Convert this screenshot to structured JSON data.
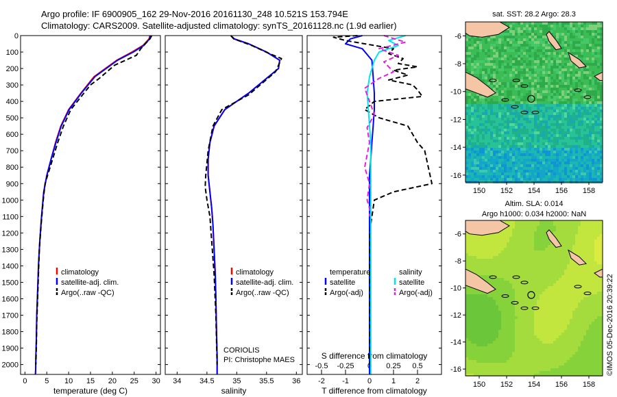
{
  "header": {
    "line1": "Argo profile: IF 6900905_162 29-Nov-2016 20161130_248 10.521S 153.794E",
    "line2": "Climatology: CARS2009. Satellite-adjusted climatology: synTS_20161128.nc (1.9d earlier)"
  },
  "colors": {
    "climatology": "#ff0000",
    "satellite": "#0000ff",
    "argo": "#000000",
    "sat_salinity": "#00e5ee",
    "argo_salinity": "#e020e0",
    "land": "#f5c6a5"
  },
  "chart_data": [
    {
      "type": "line",
      "xlabel": "temperature (deg C)",
      "xlim": [
        -1,
        31
      ],
      "ylim": [
        0,
        2060
      ],
      "xticks": [
        "0",
        "5",
        "10",
        "15",
        "20",
        "25",
        "30"
      ],
      "yticks": [
        "0",
        "100",
        "200",
        "300",
        "400",
        "500",
        "600",
        "700",
        "800",
        "900",
        "1000",
        "1100",
        "1200",
        "1300",
        "1400",
        "1500",
        "1600",
        "1700",
        "1800",
        "1900",
        "2000"
      ],
      "legend": [
        "climatology",
        "satellite-adj. clim.",
        "Argo(..raw -QC)"
      ],
      "series": [
        {
          "name": "climatology",
          "color": "#ff0000",
          "x": [
            28.6,
            28.4,
            27.0,
            24.5,
            21.0,
            15.8,
            12.8,
            10.0,
            8.2,
            7.0,
            6.0,
            5.0,
            4.3,
            3.8,
            3.4,
            3.1,
            2.9,
            2.7,
            2.6,
            2.5,
            2.45,
            2.4
          ],
          "y": [
            0,
            20,
            60,
            100,
            150,
            250,
            350,
            450,
            550,
            650,
            750,
            850,
            950,
            1100,
            1250,
            1400,
            1550,
            1700,
            1850,
            1950,
            2030,
            2060
          ]
        },
        {
          "name": "satellite-adj. clim.",
          "color": "#0000ff",
          "x": [
            28.8,
            28.5,
            27.2,
            24.8,
            21.2,
            16.0,
            12.9,
            10.1,
            8.3,
            7.1,
            6.0,
            5.0,
            4.3,
            3.8,
            3.4,
            3.1,
            2.9,
            2.7,
            2.6,
            2.5,
            2.45,
            2.4
          ],
          "y": [
            0,
            20,
            60,
            100,
            150,
            250,
            350,
            450,
            550,
            650,
            750,
            850,
            950,
            1100,
            1250,
            1400,
            1550,
            1700,
            1850,
            1950,
            2030,
            2060
          ]
        },
        {
          "name": "Argo(..raw -QC)",
          "color": "#000000",
          "dashed": true,
          "x": [
            29.0,
            28.6,
            26.5,
            25.5,
            20.5,
            17.0,
            15.0,
            10.5,
            8.8,
            7.5,
            6.0,
            4.6,
            4.2,
            3.7,
            3.3,
            3.1,
            2.9,
            2.7,
            2.6,
            2.5
          ],
          "y": [
            0,
            20,
            80,
            120,
            180,
            260,
            300,
            450,
            550,
            650,
            780,
            900,
            1000,
            1150,
            1300,
            1450,
            1600,
            1750,
            1900,
            2000
          ]
        }
      ]
    },
    {
      "type": "line",
      "xlabel": "salinity",
      "xlim": [
        33.8,
        36.1
      ],
      "ylim": [
        0,
        2060
      ],
      "xticks": [
        "34",
        "34.5",
        "35",
        "35.5",
        "36"
      ],
      "legend": [
        "climatology",
        "satellite-adj. clim.",
        "Argo(..raw -QC)"
      ],
      "footer_lines": [
        "CORIOLIS",
        "PI: Christophe MAES"
      ],
      "series": [
        {
          "name": "climatology",
          "color": "#ff0000",
          "x": [
            34.9,
            34.95,
            35.2,
            35.5,
            35.72,
            35.7,
            35.2,
            34.8,
            34.62,
            34.55,
            34.52,
            34.52,
            34.55,
            34.58,
            34.6,
            34.62,
            34.64,
            34.65,
            34.66,
            34.67,
            34.67
          ],
          "y": [
            0,
            20,
            50,
            100,
            150,
            200,
            350,
            450,
            550,
            650,
            750,
            850,
            950,
            1050,
            1150,
            1300,
            1450,
            1600,
            1800,
            1950,
            2060
          ]
        },
        {
          "name": "satellite-adj. clim.",
          "color": "#0000ff",
          "x": [
            34.9,
            34.96,
            35.2,
            35.5,
            35.72,
            35.7,
            35.2,
            34.8,
            34.62,
            34.55,
            34.52,
            34.52,
            34.55,
            34.58,
            34.6,
            34.62,
            34.64,
            34.65,
            34.66,
            34.67,
            34.67
          ],
          "y": [
            0,
            20,
            50,
            100,
            150,
            200,
            350,
            450,
            550,
            650,
            750,
            850,
            950,
            1050,
            1150,
            1300,
            1450,
            1600,
            1800,
            1950,
            2060
          ]
        },
        {
          "name": "Argo(..raw -QC)",
          "color": "#000000",
          "dashed": true,
          "x": [
            34.9,
            34.95,
            35.25,
            35.55,
            35.75,
            35.65,
            35.2,
            34.75,
            34.6,
            34.52,
            34.48,
            34.47,
            34.5,
            34.55,
            34.58,
            34.62,
            34.65,
            34.67
          ],
          "y": [
            0,
            20,
            60,
            110,
            140,
            220,
            360,
            450,
            550,
            700,
            850,
            920,
            1000,
            1100,
            1250,
            1450,
            1700,
            2000
          ]
        }
      ]
    },
    {
      "type": "line",
      "xlabel": "T difference from climatology",
      "xlabel_top": "S difference from climatology",
      "xlim": [
        -2.6,
        3.0
      ],
      "ylim": [
        0,
        2060
      ],
      "xticks": [
        "-2",
        "-1",
        "0",
        "1",
        "2"
      ],
      "xticks_top": [
        "-0.5",
        "-0.25",
        "0",
        "0.25",
        "0.5"
      ],
      "legend_temperature": [
        "temperature",
        "satellite",
        "Argo(-adj)"
      ],
      "legend_salinity": [
        "salinity",
        "satellite",
        "Argo(-adj)"
      ],
      "series": [
        {
          "name": "temperature satellite",
          "color": "#0000ff",
          "x": [
            -0.3,
            -0.8,
            -1.0,
            -0.3,
            0.1,
            0.15,
            0.2,
            0.2,
            0.15,
            0.1,
            0.05,
            0.0,
            0.0,
            0.0,
            0.0,
            0.0,
            0.0,
            0.0
          ],
          "y": [
            0,
            20,
            50,
            80,
            150,
            250,
            350,
            450,
            550,
            650,
            750,
            850,
            950,
            1100,
            1300,
            1500,
            1800,
            2060
          ]
        },
        {
          "name": "temperature Argo(-adj)",
          "color": "#000000",
          "dashed": true,
          "x": [
            -0.5,
            -1.5,
            -1.0,
            -0.2,
            1.0,
            0.8,
            1.4,
            1.2,
            2.0,
            1.0,
            1.6,
            0.8,
            1.8,
            2.0,
            2.2,
            0.2,
            -0.2,
            0.4,
            1.6,
            1.8,
            2.0,
            2.3,
            2.6,
            1.0,
            0.2,
            0.1,
            0.0,
            0.0,
            0.0,
            0.0
          ],
          "y": [
            0,
            10,
            30,
            50,
            80,
            110,
            140,
            170,
            190,
            210,
            240,
            270,
            300,
            330,
            370,
            400,
            450,
            500,
            550,
            600,
            650,
            700,
            900,
            950,
            1000,
            1100,
            1200,
            1500,
            1800,
            2000
          ]
        },
        {
          "name": "salinity satellite",
          "color": "#00e5ee",
          "x": [
            1.5,
            0.8,
            1.2,
            0.4,
            0.2,
            0.0,
            -0.1,
            -0.05,
            0.0,
            0.05,
            0.05,
            0.05,
            0.05,
            0.05,
            0.05
          ],
          "y": [
            0,
            30,
            60,
            100,
            150,
            250,
            350,
            450,
            550,
            650,
            800,
            1000,
            1300,
            1600,
            2060
          ]
        },
        {
          "name": "salinity Argo(-adj)",
          "color": "#e020e0",
          "dashed": true,
          "x": [
            0.6,
            1.5,
            0.4,
            1.2,
            0.6,
            1.0,
            0.4,
            -0.2,
            0.0,
            0.2,
            -0.1,
            0.0,
            -0.2,
            0.0,
            -0.1,
            0.0,
            0.0
          ],
          "y": [
            0,
            40,
            80,
            120,
            160,
            220,
            260,
            320,
            400,
            480,
            560,
            650,
            800,
            900,
            1000,
            1050,
            1100
          ]
        }
      ]
    },
    {
      "type": "heatmap",
      "title": "sat. SST: 28.2 Argo: 28.3",
      "xlim": [
        149,
        159
      ],
      "ylim": [
        -16.5,
        -5
      ],
      "xticks": [
        "150",
        "152",
        "154",
        "156",
        "158"
      ],
      "yticks": [
        "-6",
        "-8",
        "-10",
        "-12",
        "-14",
        "-16"
      ],
      "marker": {
        "lon": 153.794,
        "lat": -10.521
      }
    },
    {
      "type": "heatmap",
      "title": "Altim. SLA: 0.014",
      "subtitle": "Argo h1000: 0.034 h2000: NaN",
      "xlim": [
        149,
        159
      ],
      "ylim": [
        -16.5,
        -5
      ],
      "xticks": [
        "150",
        "152",
        "154",
        "156",
        "158"
      ],
      "yticks": [
        "-6",
        "-8",
        "-10",
        "-12",
        "-14",
        "-16"
      ],
      "marker": {
        "lon": 153.794,
        "lat": -10.521
      }
    }
  ],
  "footer": {
    "credit": "©IMOS 05-Dec-2016 20:39:22"
  }
}
